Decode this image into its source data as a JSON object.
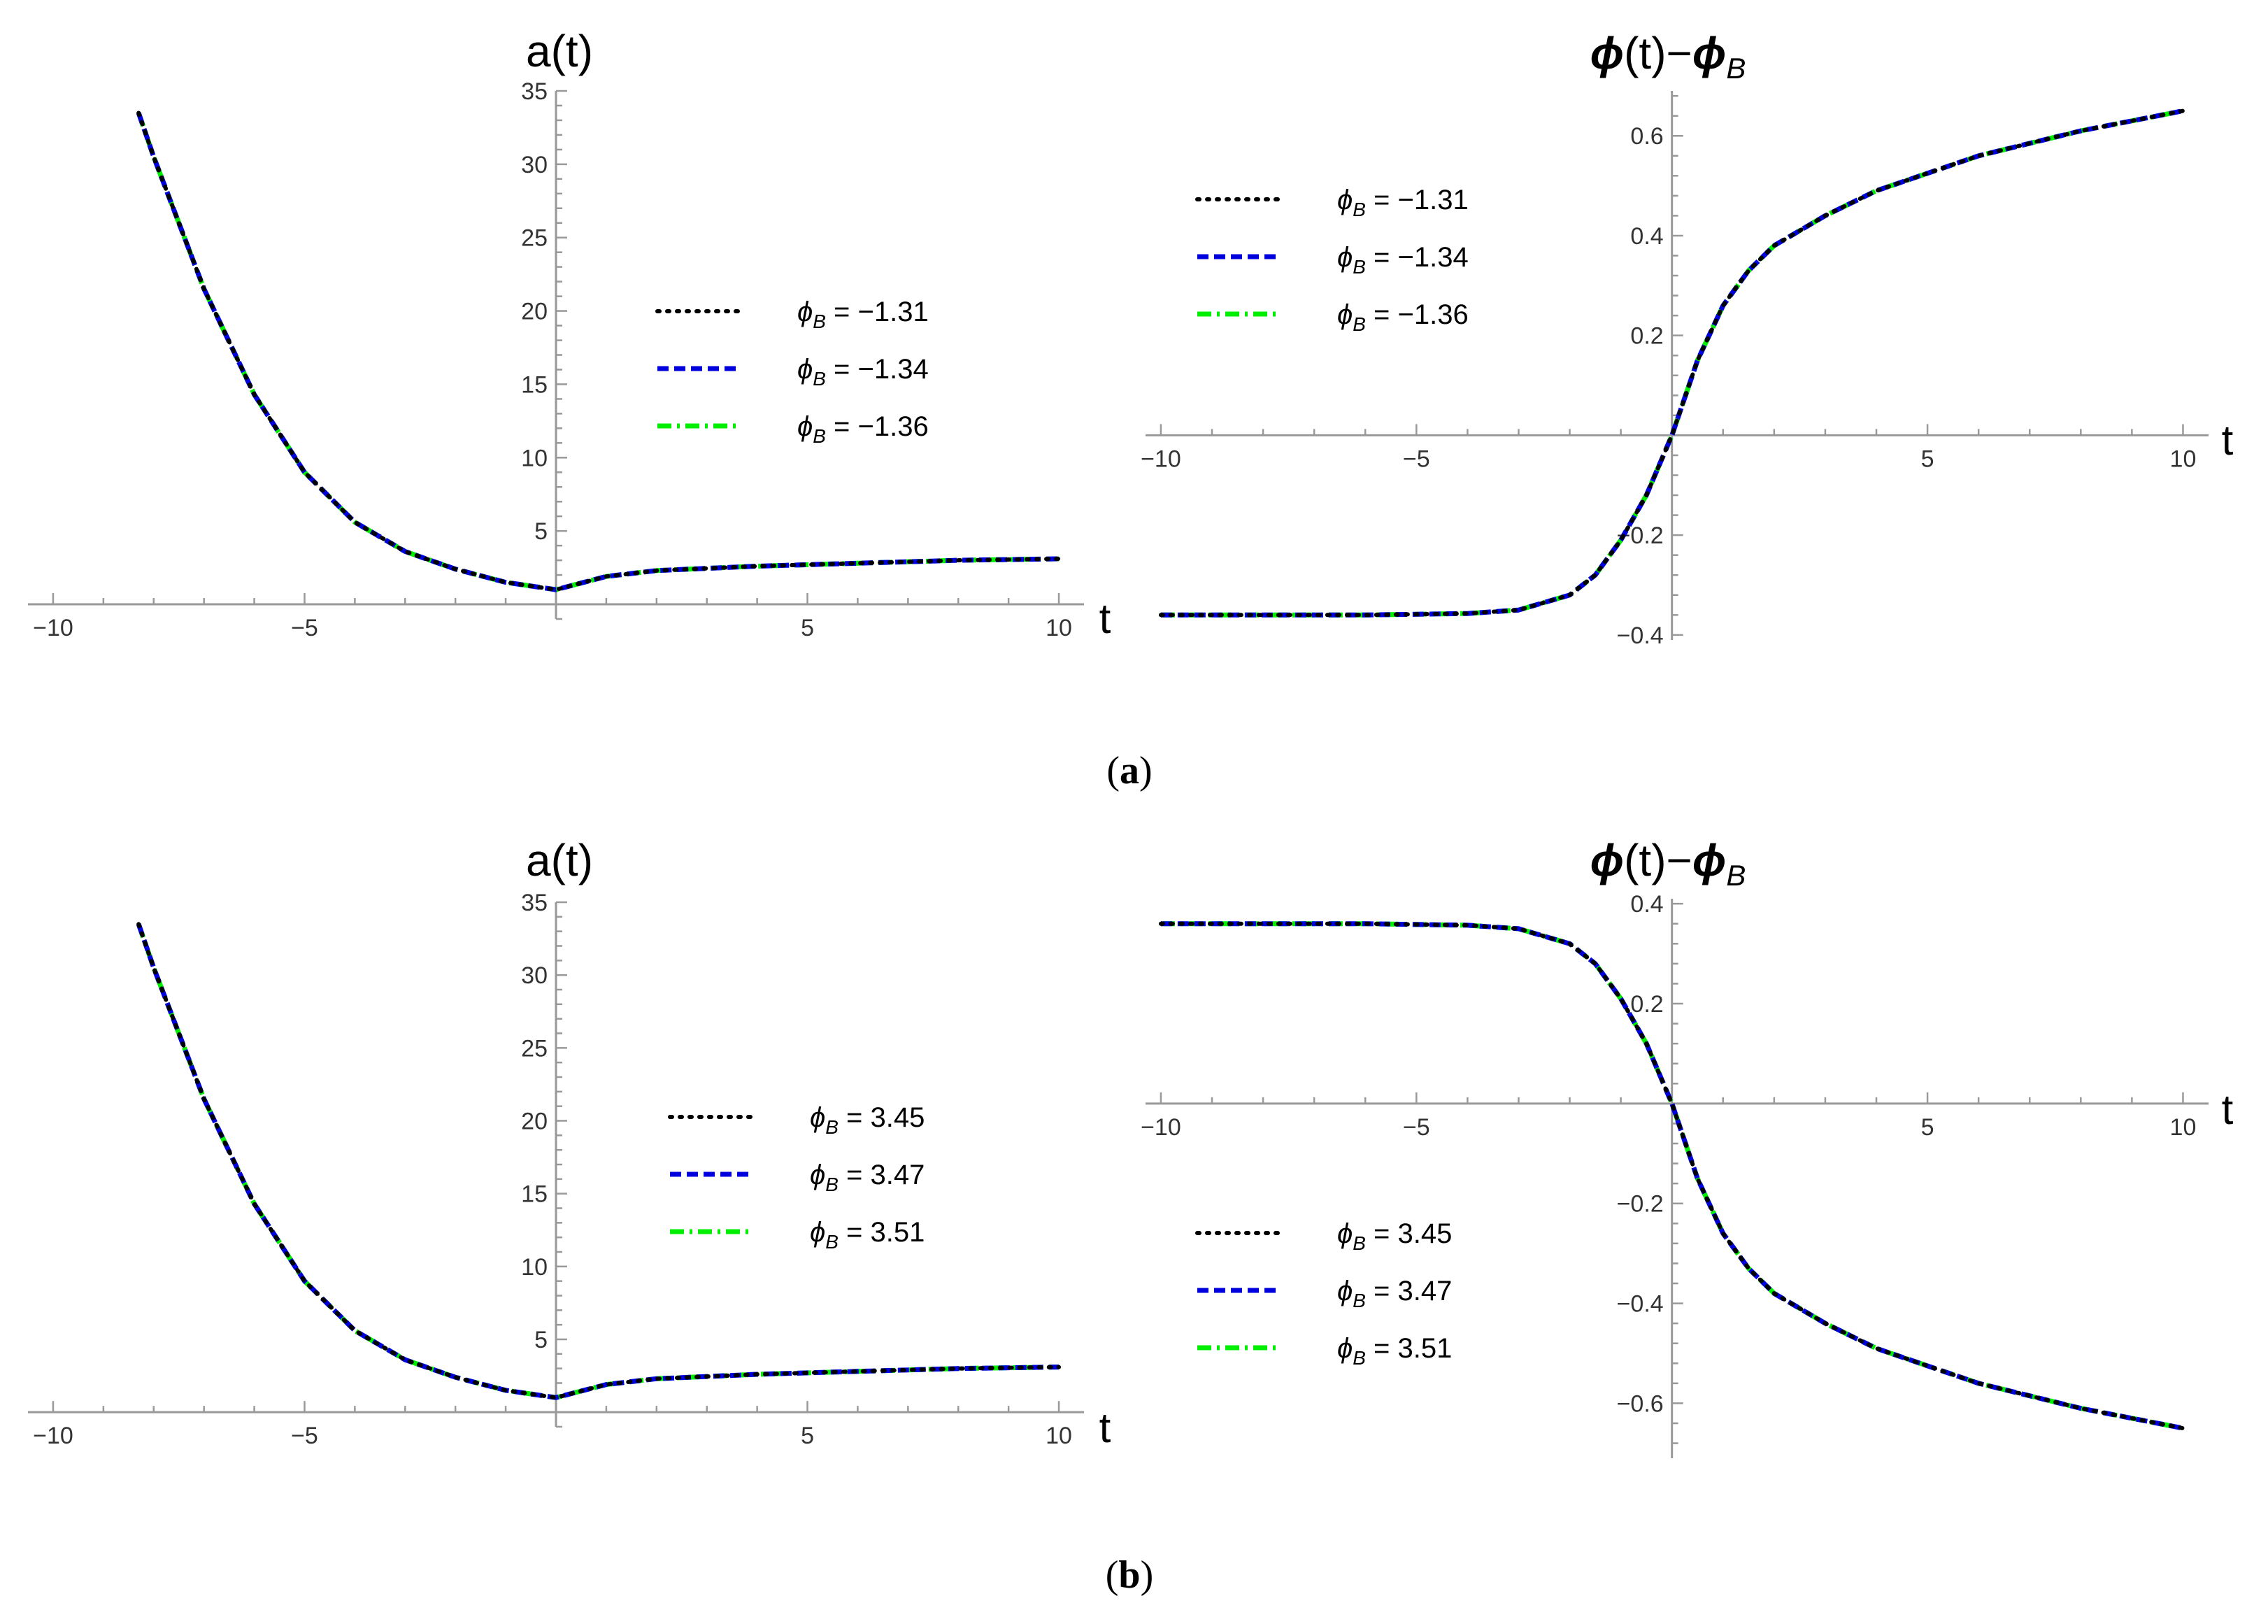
{
  "colors": {
    "black": "#000000",
    "blue": "#0000dd",
    "green": "#00ee00",
    "axis": "#999999"
  },
  "panel_labels": [
    {
      "open": "(",
      "letter": "a",
      "close": ")"
    },
    {
      "open": "(",
      "letter": "b",
      "close": ")"
    }
  ],
  "chart_data": [
    {
      "type": "line",
      "title": "a(t)",
      "xlabel": "t",
      "ylabel": "",
      "xlim": [
        -10.5,
        10.5
      ],
      "ylim": [
        -1,
        35
      ],
      "xticks": [
        {
          "v": -10,
          "label": "−10"
        },
        {
          "v": -5,
          "label": "−5"
        },
        {
          "v": 5,
          "label": "5"
        },
        {
          "v": 10,
          "label": "10"
        }
      ],
      "yticks": [
        {
          "v": 5,
          "label": "5"
        },
        {
          "v": 10,
          "label": "10"
        },
        {
          "v": 15,
          "label": "15"
        },
        {
          "v": 20,
          "label": "20"
        },
        {
          "v": 25,
          "label": "25"
        },
        {
          "v": 30,
          "label": "30"
        },
        {
          "v": 35,
          "label": "35"
        }
      ],
      "legend_position": "center-right",
      "series": [
        {
          "phi": "−1.31",
          "style": "dotted",
          "color": "#000000",
          "x": [
            -8.3,
            -8,
            -7,
            -6,
            -5,
            -4,
            -3,
            -2,
            -1,
            0,
            1,
            2,
            4,
            6,
            8,
            10
          ],
          "y": [
            33.5,
            30.5,
            21.5,
            14.3,
            9.0,
            5.6,
            3.6,
            2.4,
            1.5,
            1.0,
            1.9,
            2.3,
            2.6,
            2.8,
            3.0,
            3.1
          ]
        },
        {
          "phi": "−1.34",
          "style": "dashed",
          "color": "#0000dd",
          "x": [
            -8.3,
            -8,
            -7,
            -6,
            -5,
            -4,
            -3,
            -2,
            -1,
            0,
            1,
            2,
            4,
            6,
            8,
            10
          ],
          "y": [
            33.5,
            30.5,
            21.5,
            14.3,
            9.0,
            5.6,
            3.6,
            2.4,
            1.5,
            1.0,
            1.9,
            2.3,
            2.6,
            2.8,
            3.0,
            3.1
          ]
        },
        {
          "phi": "−1.36",
          "style": "dashdot",
          "color": "#00ee00",
          "x": [
            -8.3,
            -8,
            -7,
            -6,
            -5,
            -4,
            -3,
            -2,
            -1,
            0,
            1,
            2,
            4,
            6,
            8,
            10
          ],
          "y": [
            33.5,
            30.5,
            21.5,
            14.3,
            9.0,
            5.6,
            3.6,
            2.4,
            1.5,
            1.0,
            1.9,
            2.3,
            2.6,
            2.8,
            3.0,
            3.1
          ]
        }
      ]
    },
    {
      "type": "line",
      "title": "ϕ(t)−ϕB",
      "xlabel": "t",
      "ylabel": "",
      "xlim": [
        -10.3,
        10.5
      ],
      "ylim": [
        -0.41,
        0.69
      ],
      "xticks": [
        {
          "v": -10,
          "label": "−10"
        },
        {
          "v": -5,
          "label": "−5"
        },
        {
          "v": 5,
          "label": "5"
        },
        {
          "v": 10,
          "label": "10"
        }
      ],
      "yticks": [
        {
          "v": -0.4,
          "label": "−0.4"
        },
        {
          "v": -0.2,
          "label": "−0.2"
        },
        {
          "v": 0.2,
          "label": "0.2"
        },
        {
          "v": 0.4,
          "label": "0.4"
        },
        {
          "v": 0.6,
          "label": "0.6"
        }
      ],
      "legend_position": "upper-left",
      "series": [
        {
          "phi": "−1.31",
          "style": "dotted",
          "color": "#000000",
          "x": [
            -10,
            -8,
            -6,
            -4,
            -3,
            -2,
            -1.5,
            -1,
            -0.5,
            0,
            0.5,
            1,
            1.5,
            2,
            3,
            4,
            6,
            8,
            10
          ],
          "y": [
            -0.36,
            -0.36,
            -0.36,
            -0.357,
            -0.35,
            -0.32,
            -0.28,
            -0.21,
            -0.12,
            0.0,
            0.15,
            0.26,
            0.33,
            0.38,
            0.44,
            0.49,
            0.56,
            0.61,
            0.65
          ]
        },
        {
          "phi": "−1.34",
          "style": "dashed",
          "color": "#0000dd",
          "x": [
            -10,
            -8,
            -6,
            -4,
            -3,
            -2,
            -1.5,
            -1,
            -0.5,
            0,
            0.5,
            1,
            1.5,
            2,
            3,
            4,
            6,
            8,
            10
          ],
          "y": [
            -0.36,
            -0.36,
            -0.36,
            -0.357,
            -0.35,
            -0.32,
            -0.28,
            -0.21,
            -0.12,
            0.0,
            0.15,
            0.26,
            0.33,
            0.38,
            0.44,
            0.49,
            0.56,
            0.61,
            0.65
          ]
        },
        {
          "phi": "−1.36",
          "style": "dashdot",
          "color": "#00ee00",
          "x": [
            -10,
            -8,
            -6,
            -4,
            -3,
            -2,
            -1.5,
            -1,
            -0.5,
            0,
            0.5,
            1,
            1.5,
            2,
            3,
            4,
            6,
            8,
            10
          ],
          "y": [
            -0.36,
            -0.36,
            -0.36,
            -0.357,
            -0.35,
            -0.32,
            -0.28,
            -0.21,
            -0.12,
            0.0,
            0.15,
            0.26,
            0.33,
            0.38,
            0.44,
            0.49,
            0.56,
            0.61,
            0.65
          ]
        }
      ]
    },
    {
      "type": "line",
      "title": "a(t)",
      "xlabel": "t",
      "ylabel": "",
      "xlim": [
        -10.5,
        10.5
      ],
      "ylim": [
        -1,
        35
      ],
      "xticks": [
        {
          "v": -10,
          "label": "−10"
        },
        {
          "v": -5,
          "label": "−5"
        },
        {
          "v": 5,
          "label": "5"
        },
        {
          "v": 10,
          "label": "10"
        }
      ],
      "yticks": [
        {
          "v": 5,
          "label": "5"
        },
        {
          "v": 10,
          "label": "10"
        },
        {
          "v": 15,
          "label": "15"
        },
        {
          "v": 20,
          "label": "20"
        },
        {
          "v": 25,
          "label": "25"
        },
        {
          "v": 30,
          "label": "30"
        },
        {
          "v": 35,
          "label": "35"
        }
      ],
      "legend_position": "center-right",
      "series": [
        {
          "phi": "3.45",
          "style": "dotted",
          "color": "#000000",
          "x": [
            -8.3,
            -8,
            -7,
            -6,
            -5,
            -4,
            -3,
            -2,
            -1,
            0,
            1,
            2,
            4,
            6,
            8,
            10
          ],
          "y": [
            33.5,
            30.5,
            21.5,
            14.3,
            9.0,
            5.6,
            3.6,
            2.4,
            1.5,
            1.0,
            1.9,
            2.3,
            2.6,
            2.8,
            3.0,
            3.1
          ]
        },
        {
          "phi": "3.47",
          "style": "dashed",
          "color": "#0000dd",
          "x": [
            -8.3,
            -8,
            -7,
            -6,
            -5,
            -4,
            -3,
            -2,
            -1,
            0,
            1,
            2,
            4,
            6,
            8,
            10
          ],
          "y": [
            33.5,
            30.5,
            21.5,
            14.3,
            9.0,
            5.6,
            3.6,
            2.4,
            1.5,
            1.0,
            1.9,
            2.3,
            2.6,
            2.8,
            3.0,
            3.1
          ]
        },
        {
          "phi": "3.51",
          "style": "dashdot",
          "color": "#00ee00",
          "x": [
            -8.3,
            -8,
            -7,
            -6,
            -5,
            -4,
            -3,
            -2,
            -1,
            0,
            1,
            2,
            4,
            6,
            8,
            10
          ],
          "y": [
            33.5,
            30.5,
            21.5,
            14.3,
            9.0,
            5.6,
            3.6,
            2.4,
            1.5,
            1.0,
            1.9,
            2.3,
            2.6,
            2.8,
            3.0,
            3.1
          ]
        }
      ]
    },
    {
      "type": "line",
      "title": "ϕ(t)−ϕB",
      "xlabel": "t",
      "ylabel": "",
      "xlim": [
        -10.3,
        10.5
      ],
      "ylim": [
        -0.71,
        0.41
      ],
      "xticks": [
        {
          "v": -10,
          "label": "−10"
        },
        {
          "v": -5,
          "label": "−5"
        },
        {
          "v": 5,
          "label": "5"
        },
        {
          "v": 10,
          "label": "10"
        }
      ],
      "yticks": [
        {
          "v": -0.6,
          "label": "−0.6"
        },
        {
          "v": -0.4,
          "label": "−0.4"
        },
        {
          "v": -0.2,
          "label": "−0.2"
        },
        {
          "v": 0.2,
          "label": "0.2"
        },
        {
          "v": 0.4,
          "label": "0.4"
        }
      ],
      "legend_position": "lower-left",
      "series": [
        {
          "phi": "3.45",
          "style": "dotted",
          "color": "#000000",
          "x": [
            -10,
            -8,
            -6,
            -4,
            -3,
            -2,
            -1.5,
            -1,
            -0.5,
            0,
            0.5,
            1,
            1.5,
            2,
            3,
            4,
            6,
            8,
            10
          ],
          "y": [
            0.36,
            0.36,
            0.36,
            0.357,
            0.35,
            0.32,
            0.28,
            0.21,
            0.12,
            0.0,
            -0.15,
            -0.26,
            -0.33,
            -0.38,
            -0.44,
            -0.49,
            -0.56,
            -0.61,
            -0.65
          ]
        },
        {
          "phi": "3.47",
          "style": "dashed",
          "color": "#0000dd",
          "x": [
            -10,
            -8,
            -6,
            -4,
            -3,
            -2,
            -1.5,
            -1,
            -0.5,
            0,
            0.5,
            1,
            1.5,
            2,
            3,
            4,
            6,
            8,
            10
          ],
          "y": [
            0.36,
            0.36,
            0.36,
            0.357,
            0.35,
            0.32,
            0.28,
            0.21,
            0.12,
            0.0,
            -0.15,
            -0.26,
            -0.33,
            -0.38,
            -0.44,
            -0.49,
            -0.56,
            -0.61,
            -0.65
          ]
        },
        {
          "phi": "3.51",
          "style": "dashdot",
          "color": "#00ee00",
          "x": [
            -10,
            -8,
            -6,
            -4,
            -3,
            -2,
            -1.5,
            -1,
            -0.5,
            0,
            0.5,
            1,
            1.5,
            2,
            3,
            4,
            6,
            8,
            10
          ],
          "y": [
            0.36,
            0.36,
            0.36,
            0.357,
            0.35,
            0.32,
            0.28,
            0.21,
            0.12,
            0.0,
            -0.15,
            -0.26,
            -0.33,
            -0.38,
            -0.44,
            -0.49,
            -0.56,
            -0.61,
            -0.65
          ]
        }
      ]
    }
  ]
}
